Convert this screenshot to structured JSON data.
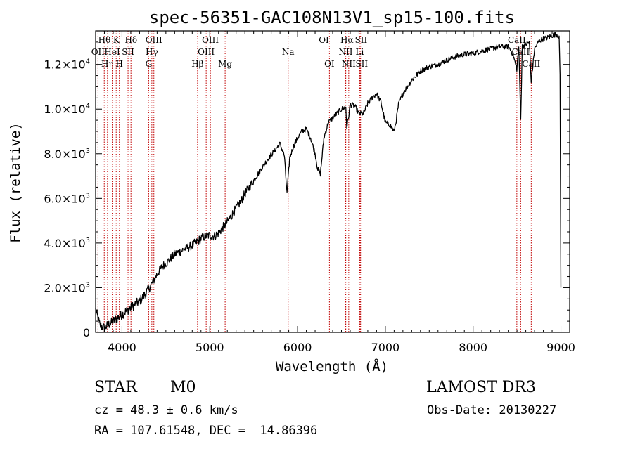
{
  "chart_data": {
    "type": "line",
    "title": "spec-56351-GAC108N13V1_sp15-100.fits",
    "xlabel": "Wavelength (Å)",
    "ylabel": "Flux (relative)",
    "xlim": [
      3700,
      9100
    ],
    "ylim": [
      0,
      13500
    ],
    "xticks": [
      {
        "value": 4000,
        "label": "4000"
      },
      {
        "value": 5000,
        "label": "5000"
      },
      {
        "value": 6000,
        "label": "6000"
      },
      {
        "value": 7000,
        "label": "7000"
      },
      {
        "value": 8000,
        "label": "8000"
      },
      {
        "value": 9000,
        "label": "9000"
      }
    ],
    "yticks": [
      {
        "value": 0,
        "mant": "0",
        "exp": ""
      },
      {
        "value": 2000,
        "mant": "2.0×10",
        "exp": "3"
      },
      {
        "value": 4000,
        "mant": "4.0×10",
        "exp": "3"
      },
      {
        "value": 6000,
        "mant": "6.0×10",
        "exp": "3"
      },
      {
        "value": 8000,
        "mant": "8.0×10",
        "exp": "3"
      },
      {
        "value": 10000,
        "mant": "1.0×10",
        "exp": "4"
      },
      {
        "value": 12000,
        "mant": "1.2×10",
        "exp": "4"
      }
    ],
    "spectrum": {
      "x": [
        3700,
        3750,
        3800,
        3850,
        3900,
        3950,
        4000,
        4050,
        4100,
        4150,
        4200,
        4250,
        4300,
        4350,
        4400,
        4450,
        4500,
        4550,
        4600,
        4650,
        4700,
        4750,
        4800,
        4850,
        4900,
        4950,
        5000,
        5050,
        5100,
        5150,
        5200,
        5250,
        5300,
        5350,
        5400,
        5450,
        5500,
        5550,
        5600,
        5650,
        5700,
        5750,
        5800,
        5850,
        5880,
        5910,
        5950,
        6000,
        6050,
        6100,
        6150,
        6200,
        6230,
        6260,
        6300,
        6350,
        6400,
        6450,
        6500,
        6550,
        6560,
        6580,
        6600,
        6650,
        6700,
        6750,
        6800,
        6850,
        6900,
        6950,
        7000,
        7050,
        7100,
        7120,
        7150,
        7200,
        7250,
        7300,
        7400,
        7500,
        7600,
        7700,
        7800,
        7900,
        8000,
        8100,
        8200,
        8300,
        8400,
        8450,
        8498,
        8520,
        8542,
        8560,
        8600,
        8640,
        8662,
        8700,
        8750,
        8800,
        8850,
        8900,
        8950,
        8980,
        8990,
        9000
      ],
      "y": [
        1000,
        300,
        200,
        350,
        500,
        650,
        800,
        950,
        1100,
        1250,
        1400,
        1650,
        1900,
        2250,
        2600,
        2900,
        3100,
        3300,
        3500,
        3600,
        3700,
        3800,
        3900,
        4050,
        4200,
        4300,
        4350,
        4300,
        4450,
        4700,
        4950,
        5250,
        5550,
        5850,
        6200,
        6500,
        6800,
        7100,
        7400,
        7700,
        7950,
        8200,
        8450,
        7900,
        6200,
        7800,
        8300,
        8700,
        9000,
        9100,
        8700,
        8000,
        7300,
        7100,
        8700,
        9400,
        9600,
        9800,
        10000,
        10100,
        9200,
        9600,
        10200,
        10150,
        9800,
        9800,
        10250,
        10500,
        10700,
        10300,
        9400,
        9300,
        9000,
        9400,
        10200,
        10700,
        11000,
        11300,
        11700,
        11900,
        12000,
        12200,
        12350,
        12450,
        12500,
        12600,
        12700,
        12800,
        12800,
        12500,
        11800,
        12800,
        9500,
        12800,
        12900,
        13000,
        11200,
        12700,
        13050,
        13150,
        13200,
        13300,
        13350,
        13250,
        11500,
        2000
      ]
    },
    "lines": [
      {
        "name": "H-theta",
        "wave": 3798
      },
      {
        "name": "H-eta",
        "wave": 3835
      },
      {
        "name": "CaII K",
        "wave": 3934
      },
      {
        "name": "HeI",
        "wave": 3889
      },
      {
        "name": "CaII H/He",
        "wave": 3970
      },
      {
        "name": "SII",
        "wave": 4069
      },
      {
        "name": "H-delta",
        "wave": 4102
      },
      {
        "name": "OII",
        "wave": 3727
      },
      {
        "name": "OIII",
        "wave": 4363
      },
      {
        "name": "G band",
        "wave": 4304
      },
      {
        "name": "H-gamma",
        "wave": 4340
      },
      {
        "name": "H-beta",
        "wave": 4861
      },
      {
        "name": "OIII 4959",
        "wave": 4959
      },
      {
        "name": "OIII 5007",
        "wave": 5007
      },
      {
        "name": "Mg",
        "wave": 5175
      },
      {
        "name": "Na",
        "wave": 5893
      },
      {
        "name": "OI 6300",
        "wave": 6300
      },
      {
        "name": "OI 6363",
        "wave": 6363
      },
      {
        "name": "NII 6548",
        "wave": 6548
      },
      {
        "name": "H-alpha",
        "wave": 6563
      },
      {
        "name": "NII 6583",
        "wave": 6583
      },
      {
        "name": "Li",
        "wave": 6708
      },
      {
        "name": "SII 6716",
        "wave": 6716
      },
      {
        "name": "SII 6731",
        "wave": 6731
      },
      {
        "name": "CaII 8498",
        "wave": 8498
      },
      {
        "name": "CaII 8542",
        "wave": 8542
      },
      {
        "name": "CaII 8662",
        "wave": 8662
      }
    ],
    "line_labels": [
      {
        "text": "Hθ",
        "wave": 3800,
        "row": 1
      },
      {
        "text": "K",
        "wave": 3935,
        "row": 1
      },
      {
        "text": "Hδ",
        "wave": 4103,
        "row": 1
      },
      {
        "text": "OIII",
        "wave": 4363,
        "row": 1
      },
      {
        "text": "OIII",
        "wave": 5007,
        "row": 1
      },
      {
        "text": "OI",
        "wave": 6300,
        "row": 1
      },
      {
        "text": "Hα",
        "wave": 6563,
        "row": 1
      },
      {
        "text": "SII",
        "wave": 6724,
        "row": 1
      },
      {
        "text": "CaII",
        "wave": 8498,
        "row": 1
      },
      {
        "text": "OII",
        "wave": 3727,
        "row": 2
      },
      {
        "text": "HeI",
        "wave": 3889,
        "row": 2
      },
      {
        "text": "SII",
        "wave": 4069,
        "row": 2
      },
      {
        "text": "Hγ",
        "wave": 4340,
        "row": 2
      },
      {
        "text": "OIII",
        "wave": 4959,
        "row": 2
      },
      {
        "text": "Na",
        "wave": 5893,
        "row": 2
      },
      {
        "text": "NII",
        "wave": 6548,
        "row": 2
      },
      {
        "text": "Li",
        "wave": 6708,
        "row": 2
      },
      {
        "text": "CaII",
        "wave": 8542,
        "row": 2
      },
      {
        "text": "Hη",
        "wave": 3835,
        "row": 3
      },
      {
        "text": "H",
        "wave": 3970,
        "row": 3
      },
      {
        "text": "G",
        "wave": 4304,
        "row": 3
      },
      {
        "text": "Hβ",
        "wave": 4861,
        "row": 3
      },
      {
        "text": "Mg",
        "wave": 5175,
        "row": 3
      },
      {
        "text": "OI",
        "wave": 6363,
        "row": 3
      },
      {
        "text": "NII",
        "wave": 6583,
        "row": 3
      },
      {
        "text": "SII",
        "wave": 6731,
        "row": 3
      },
      {
        "text": "CaII",
        "wave": 8662,
        "row": 3
      }
    ],
    "colors": {
      "spectrum": "#000000",
      "lines": "#c00000",
      "axes": "#000000"
    }
  },
  "info": {
    "class": "STAR",
    "subclass": "M0",
    "survey": "LAMOST DR3",
    "cz": "cz = 48.3 ± 0.6 km/s",
    "obs_date": "Obs-Date: 20130227",
    "coords": "RA = 107.61548, DEC =  14.86396"
  }
}
